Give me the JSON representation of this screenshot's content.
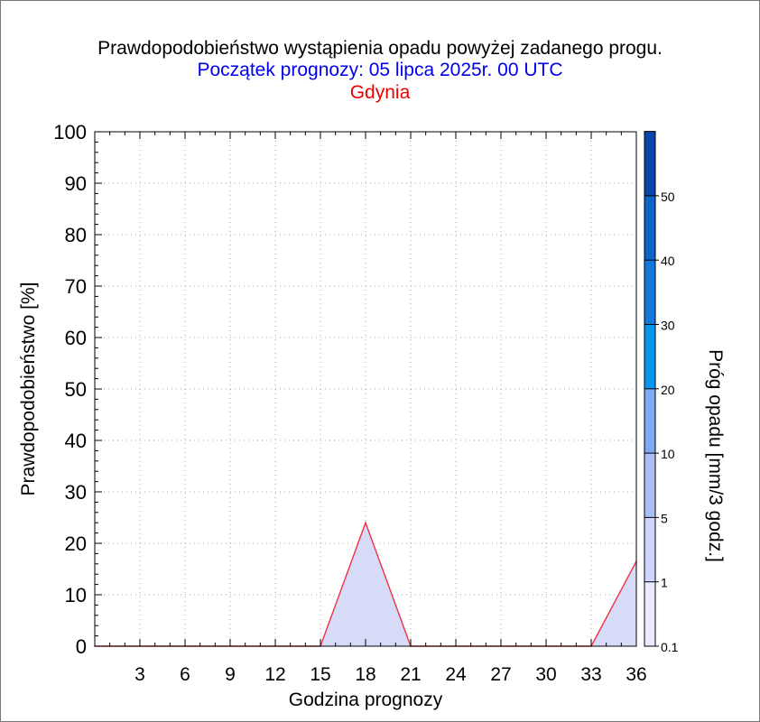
{
  "chart_data": {
    "type": "area",
    "title": "Prawdopodobieństwo wystąpienia opadu powyżej zadanego progu.",
    "subtitle": "Początek prognozy: 05 lipca 2025r. 00 UTC",
    "location": "Gdynia",
    "xlabel": "Godzina prognozy",
    "ylabel": "Prawdopodobieństwo [%]",
    "xlim": [
      0,
      36
    ],
    "ylim": [
      0,
      100
    ],
    "x_ticks": [
      3,
      6,
      9,
      12,
      15,
      18,
      21,
      24,
      27,
      30,
      33,
      36
    ],
    "y_ticks": [
      0,
      10,
      20,
      30,
      40,
      50,
      60,
      70,
      80,
      90,
      100
    ],
    "grid": true,
    "series": [
      {
        "threshold": "0.1",
        "x": [
          0,
          15,
          18,
          21,
          33,
          36
        ],
        "y": [
          0,
          0,
          24,
          0,
          0,
          16.5
        ]
      }
    ],
    "colorbar": {
      "label": "Próg opadu [mm/3 godz.]",
      "tick_labels": [
        "0.1",
        "1",
        "5",
        "10",
        "20",
        "30",
        "40",
        "50"
      ],
      "colors": [
        "#eaeaff",
        "#cfd5ff",
        "#aabef5",
        "#7fa9f2",
        "#0a96ee",
        "#1278dc",
        "#0f64c8",
        "#0a46aa"
      ]
    },
    "colors": {
      "line": "#ee3344",
      "fill": "#d6dcf8"
    }
  }
}
